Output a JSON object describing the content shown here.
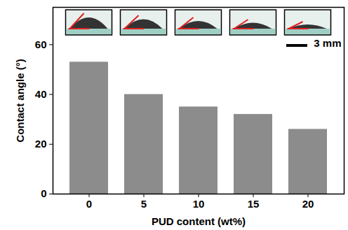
{
  "chart_data": {
    "type": "bar",
    "x_label": "PUD content (wt%)",
    "y_label": "Contact angle (°)",
    "categories": [
      "0",
      "5",
      "10",
      "15",
      "20"
    ],
    "values": [
      53,
      40,
      35,
      32,
      26
    ],
    "color": "#8c8c8c",
    "ylim": [
      0,
      75
    ],
    "yticks": [
      0,
      20,
      40,
      60
    ],
    "grid": false,
    "annotations": [
      "3 mm"
    ]
  }
}
